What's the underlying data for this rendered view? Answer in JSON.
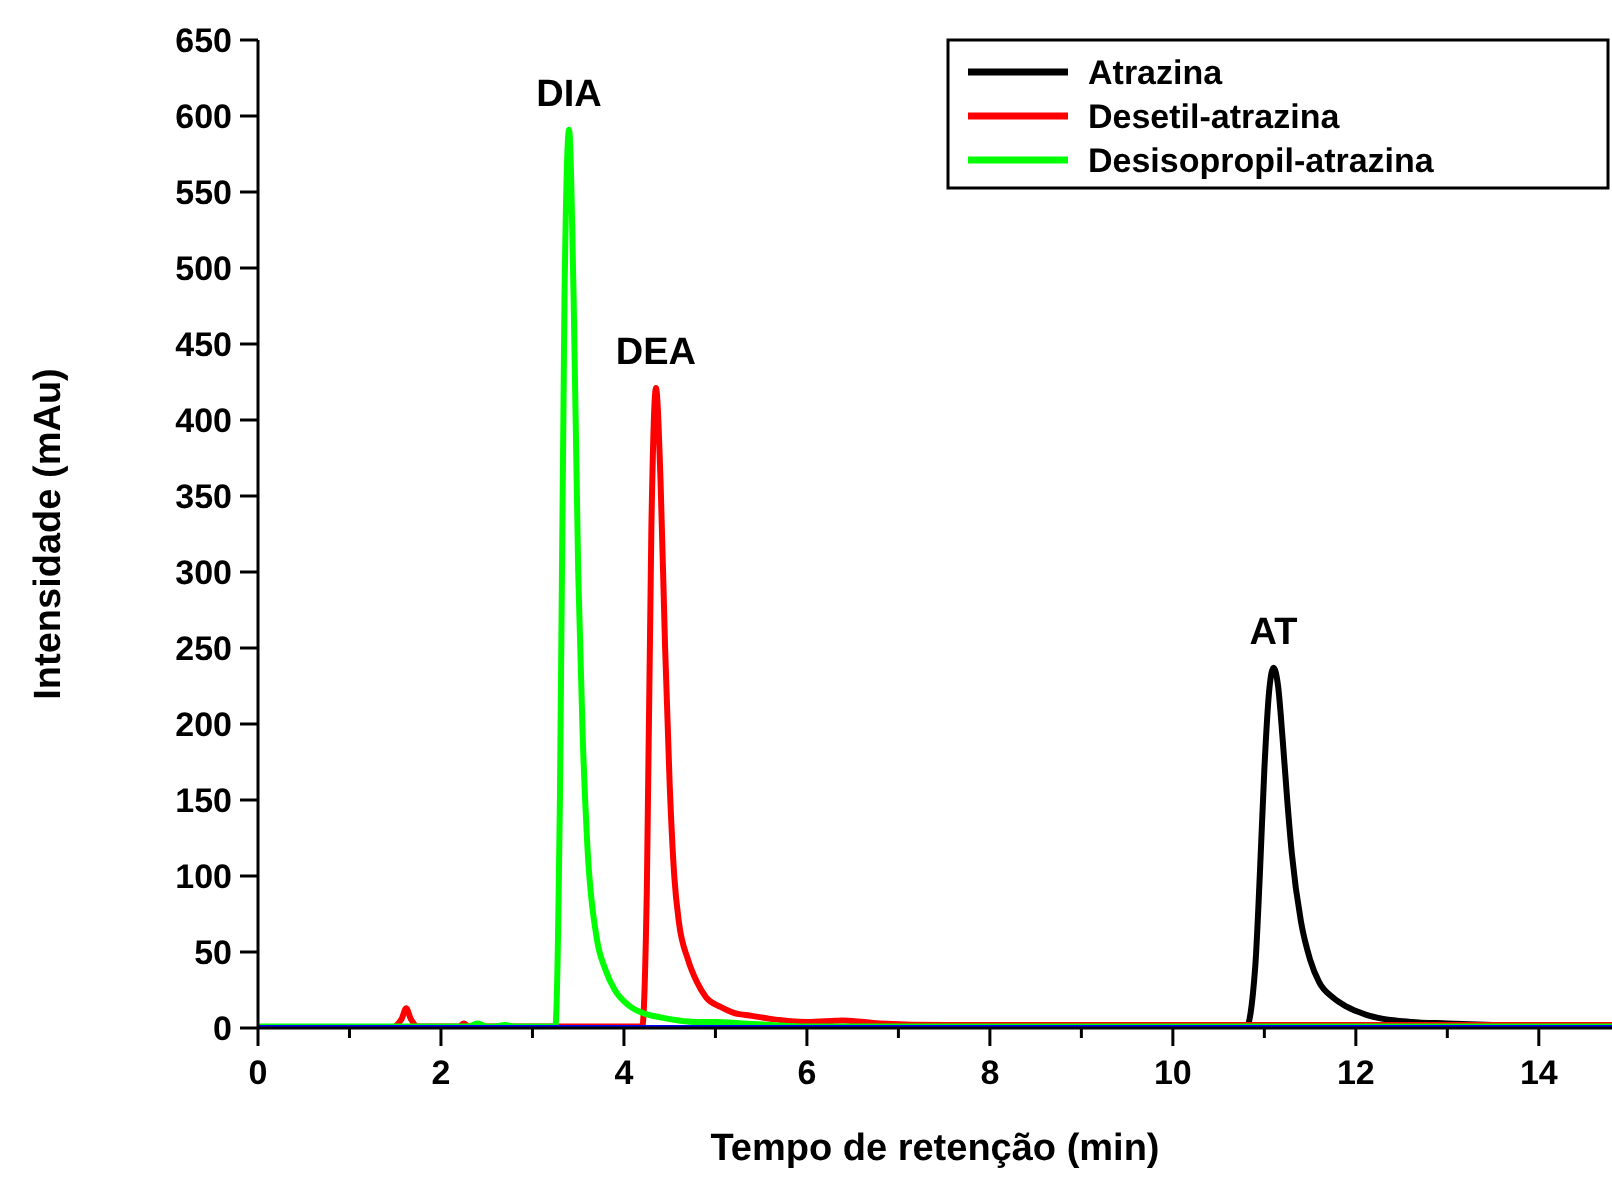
{
  "chart_data": {
    "type": "line",
    "xlabel": "Tempo de retenção (min)",
    "ylabel": "Intensidade (mAu)",
    "xlim": [
      0,
      14.8
    ],
    "ylim": [
      0,
      650
    ],
    "xticks": [
      0,
      {
        "value": 1,
        "label": null
      },
      2,
      {
        "value": 3,
        "label": null
      },
      4,
      {
        "value": 5,
        "label": null
      },
      6,
      {
        "value": 7,
        "label": null
      },
      8,
      {
        "value": 9,
        "label": null
      },
      10,
      {
        "value": 11,
        "label": null
      },
      12,
      {
        "value": 13,
        "label": null
      },
      14
    ],
    "yticks": [
      0,
      50,
      100,
      150,
      200,
      250,
      300,
      350,
      400,
      450,
      500,
      550,
      600,
      650
    ],
    "legend": "top right",
    "grid": false,
    "line_style": "solid",
    "marker": "none",
    "annotations": [
      {
        "text": "DIA",
        "x": 3.4,
        "y": 591
      },
      {
        "text": "DEA",
        "x": 4.35,
        "y": 421
      },
      {
        "text": "AT",
        "x": 11.1,
        "y": 237
      }
    ],
    "series": [
      {
        "name": "Atrazina",
        "color": "#000000",
        "x": [
          0,
          10.8,
          10.9,
          10.95,
          11.0,
          11.05,
          11.1,
          11.15,
          11.2,
          11.25,
          11.3,
          11.4,
          11.5,
          11.6,
          11.75,
          11.9,
          12.1,
          12.3,
          12.6,
          13,
          13.5,
          14,
          14.8
        ],
        "values": [
          0,
          0,
          40,
          100,
          170,
          220,
          237,
          225,
          190,
          150,
          115,
          70,
          45,
          30,
          20,
          14,
          9,
          6,
          4,
          3,
          2,
          1,
          1
        ]
      },
      {
        "name": "Desetil-atrazina",
        "color": "#ff0000",
        "x": [
          1.5,
          1.57,
          1.62,
          1.67,
          1.75,
          2.2,
          2.25,
          2.3,
          4.2,
          4.25,
          4.3,
          4.35,
          4.4,
          4.45,
          4.5,
          4.55,
          4.6,
          4.7,
          4.8,
          4.9,
          5.05,
          5.2,
          5.4,
          5.6,
          6.0,
          6.4,
          6.8,
          7.5,
          8,
          10,
          12,
          14.8
        ],
        "values": [
          1,
          6,
          13,
          6,
          1,
          1,
          3,
          1,
          1,
          90,
          330,
          421,
          360,
          250,
          160,
          100,
          70,
          45,
          30,
          20,
          14,
          10,
          8,
          6,
          4,
          5,
          3,
          2,
          2,
          2,
          2,
          2
        ]
      },
      {
        "name": "Desisopropil-atrazina",
        "color": "#00ff00",
        "x": [
          0,
          2.3,
          2.4,
          2.5,
          2.6,
          2.7,
          2.8,
          3.25,
          3.3,
          3.35,
          3.4,
          3.45,
          3.5,
          3.55,
          3.6,
          3.7,
          3.8,
          3.9,
          4.05,
          4.2,
          4.4,
          4.6,
          4.8,
          5.0,
          5.3,
          5.6,
          6,
          8,
          14.8
        ],
        "values": [
          1,
          1,
          3,
          1,
          1,
          2,
          1,
          1,
          150,
          480,
          591,
          480,
          300,
          190,
          120,
          60,
          38,
          25,
          15,
          10,
          7,
          5,
          4,
          4,
          3,
          2,
          1,
          1,
          1
        ]
      },
      {
        "color": "#0000ff",
        "x": [
          0,
          14.8
        ],
        "values": [
          0,
          0
        ]
      }
    ]
  }
}
